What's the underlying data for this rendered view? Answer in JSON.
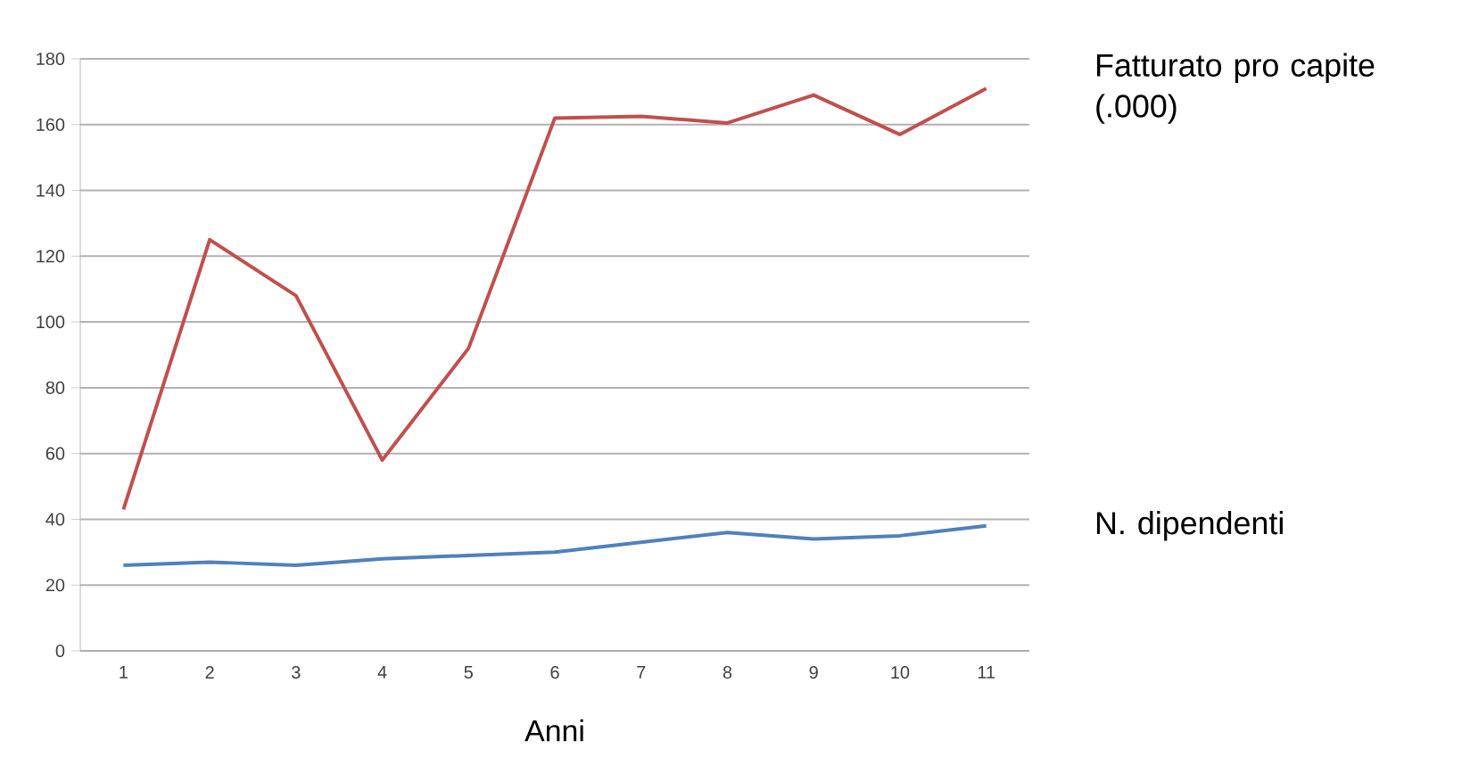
{
  "chart_data": {
    "type": "line",
    "xlabel": "Anni",
    "categories": [
      "1",
      "2",
      "3",
      "4",
      "5",
      "6",
      "7",
      "8",
      "9",
      "10",
      "11"
    ],
    "series": [
      {
        "name": "Fatturato pro capite (.000)",
        "color": "#c0504d",
        "values": [
          43,
          125,
          108,
          58,
          92,
          162,
          162.5,
          160.5,
          169,
          157,
          171
        ]
      },
      {
        "name": "N. dipendenti",
        "color": "#4f81bd",
        "values": [
          26,
          27,
          26,
          28,
          29,
          30,
          33,
          36,
          34,
          35,
          38
        ]
      }
    ],
    "ylim": [
      0,
      180
    ],
    "yticks": [
      0,
      20,
      40,
      60,
      80,
      100,
      120,
      140,
      160,
      180
    ],
    "grid": "y",
    "legend": false,
    "marker": "none",
    "line_style": "solid"
  }
}
